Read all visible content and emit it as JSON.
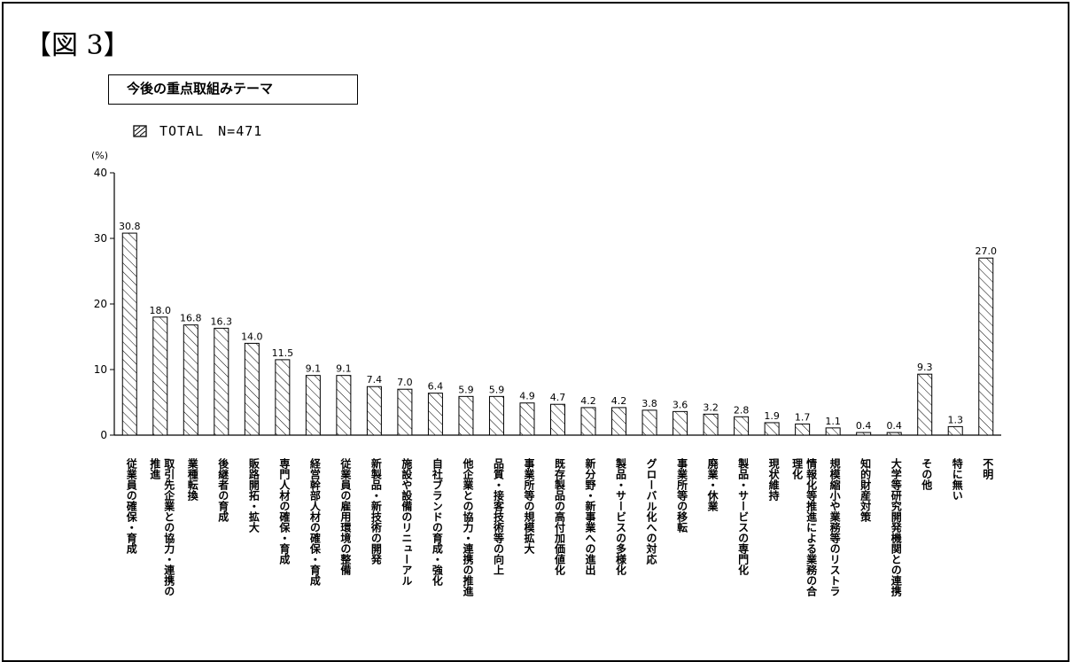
{
  "figure_label": "【図 3】",
  "chart_data": {
    "type": "bar",
    "title": "今後の重点取組みテーマ",
    "legend": {
      "label": "TOTAL　N=471",
      "placement": "top-left"
    },
    "ylabel": "(%)",
    "ylim": [
      0,
      40
    ],
    "yticks": [
      "0",
      "10",
      "20",
      "30",
      "40"
    ],
    "categories": [
      "従業員の確保・育成",
      "取引先企業との協力・連携の推進",
      "業種転換",
      "後継者の育成",
      "販路開拓・拡大",
      "専門人材の確保・育成",
      "経営幹部人材の確保・育成",
      "従業員の雇用環境の整備",
      "新製品・新技術の開発",
      "施設や設備のリニューアル",
      "自社ブランドの育成・強化",
      "他企業との協力・連携の推進",
      "品質・接客技術等の向上",
      "事業所等の規模拡大",
      "既存製品の高付加価値化",
      "新分野・新事業への進出",
      "製品・サービスの多様化",
      "グローバル化への対応",
      "事業所等の移転",
      "廃業・休業",
      "製品・サービスの専門化",
      "現状維持",
      "情報化等推進による業務の合理化",
      "規模縮小や業務等のリストラ",
      "知的財産対策",
      "大学等研究開発機関との連携",
      "その他",
      "特に無い",
      "不明"
    ],
    "values": [
      30.8,
      18.0,
      16.8,
      16.3,
      14.0,
      11.5,
      9.1,
      9.1,
      7.4,
      7.0,
      6.4,
      5.9,
      5.9,
      4.9,
      4.7,
      4.2,
      4.2,
      3.8,
      3.6,
      3.2,
      2.8,
      1.9,
      1.7,
      1.1,
      0.4,
      0.4,
      9.3,
      1.3,
      27.0
    ],
    "value_labels": [
      "30.8",
      "18.0",
      "16.8",
      "16.3",
      "14.0",
      "11.5",
      "9.1",
      "9.1",
      "7.4",
      "7.0",
      "6.4",
      "5.9",
      "5.9",
      "4.9",
      "4.7",
      "4.2",
      "4.2",
      "3.8",
      "3.6",
      "3.2",
      "2.8",
      "1.9",
      "1.7",
      "1.1",
      "0.4",
      "0.4",
      "9.3",
      "1.3",
      "27.0"
    ],
    "category_label_columns": [
      [
        "従業員の確保・育成"
      ],
      [
        "取引先企業との協力・連携の",
        "推進"
      ],
      [
        "業種転換"
      ],
      [
        "後継者の育成"
      ],
      [
        "販路開拓・拡大"
      ],
      [
        "専門人材の確保・育成"
      ],
      [
        "経営幹部人材の確保・育成"
      ],
      [
        "従業員の雇用環境の整備"
      ],
      [
        "新製品・新技術の開発"
      ],
      [
        "施設や設備のリニューアル"
      ],
      [
        "自社ブランドの育成・強化"
      ],
      [
        "他企業との協力・連携の推進"
      ],
      [
        "品質・接客技術等の向上"
      ],
      [
        "事業所等の規模拡大"
      ],
      [
        "既存製品の高付加価値化"
      ],
      [
        "新分野・新事業への進出"
      ],
      [
        "製品・サービスの多様化"
      ],
      [
        "グローバル化への対応"
      ],
      [
        "事業所等の移転"
      ],
      [
        "廃業・休業"
      ],
      [
        "製品・サービスの専門化"
      ],
      [
        "現状維持"
      ],
      [
        "情報化等推進による業務の合",
        "理化"
      ],
      [
        "規模縮小や業務等のリストラ"
      ],
      [
        "知的財産対策"
      ],
      [
        "大学等研究開発機関との連携"
      ],
      [
        "その他"
      ],
      [
        "特に無い"
      ],
      [
        "不明"
      ]
    ],
    "bar_fill": "hatched",
    "colors": {
      "bar_stroke": "#000000",
      "hatch": "#000000",
      "background": "#ffffff"
    },
    "grid": false
  }
}
